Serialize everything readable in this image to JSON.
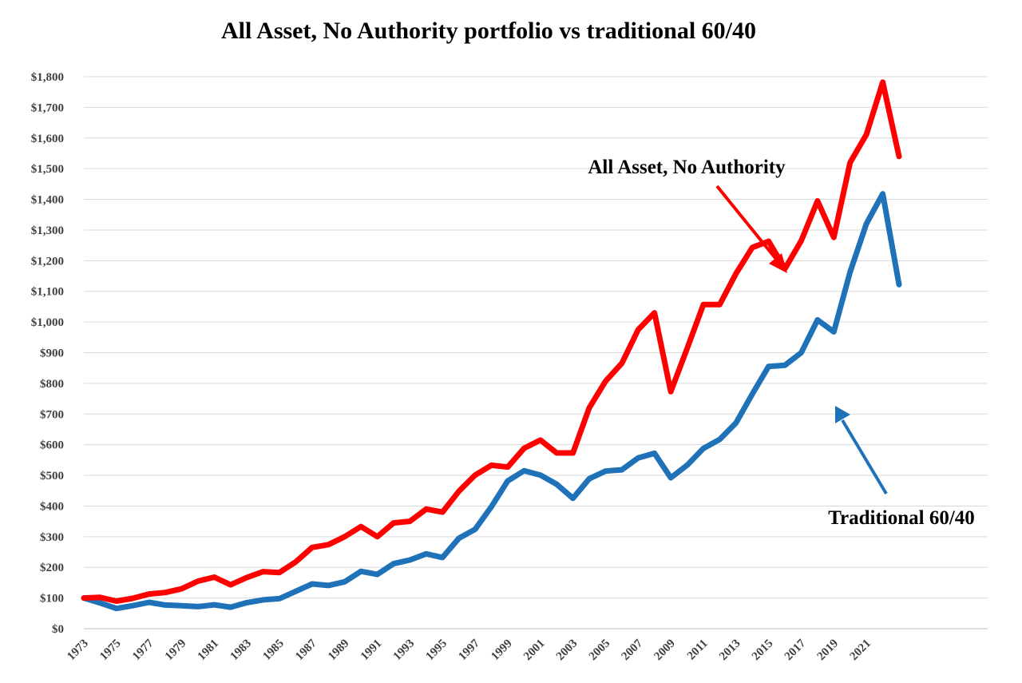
{
  "chart_data": {
    "type": "line",
    "title": "All Asset, No Authority portfolio vs traditional 60/40",
    "xlabel": "",
    "ylabel": "",
    "ylim": [
      0,
      1800
    ],
    "y_ticks": [
      "$0",
      "$100",
      "$200",
      "$300",
      "$400",
      "$500",
      "$600",
      "$700",
      "$800",
      "$900",
      "$1,000",
      "$1,100",
      "$1,200",
      "$1,300",
      "$1,400",
      "$1,500",
      "$1,600",
      "$1,700",
      "$1,800"
    ],
    "x_tick_labels": [
      "1973",
      "1975",
      "1977",
      "1979",
      "1981",
      "1983",
      "1985",
      "1987",
      "1989",
      "1991",
      "1993",
      "1995",
      "1997",
      "1999",
      "2001",
      "2003",
      "2005",
      "2007",
      "2009",
      "2011",
      "2013",
      "2015",
      "2017",
      "2019",
      "2021"
    ],
    "x": [
      1973,
      1974,
      1975,
      1976,
      1977,
      1978,
      1979,
      1980,
      1981,
      1982,
      1983,
      1984,
      1985,
      1986,
      1987,
      1988,
      1989,
      1990,
      1991,
      1992,
      1993,
      1994,
      1995,
      1996,
      1997,
      1998,
      1999,
      2000,
      2001,
      2002,
      2003,
      2004,
      2005,
      2006,
      2007,
      2008,
      2009,
      2010,
      2011,
      2012,
      2013,
      2014,
      2015,
      2016,
      2017,
      2018,
      2019,
      2020,
      2021,
      2022,
      2023
    ],
    "grid": true,
    "legend": "none",
    "series": [
      {
        "name": "All Asset, No Authority",
        "color": "#ff0000",
        "values": [
          100,
          102,
          90,
          99,
          113,
          118,
          130,
          155,
          168,
          143,
          167,
          186,
          183,
          218,
          265,
          274,
          300,
          333,
          300,
          345,
          350,
          390,
          380,
          448,
          501,
          533,
          527,
          588,
          615,
          573,
          573,
          720,
          807,
          866,
          975,
          1030,
          773,
          913,
          1057,
          1057,
          1158,
          1243,
          1263,
          1174,
          1265,
          1395,
          1276,
          1520,
          1612,
          1782,
          1540
        ]
      },
      {
        "name": "Traditional 60/40",
        "color": "#1f72b8",
        "values": [
          100,
          84,
          66,
          75,
          86,
          77,
          75,
          72,
          78,
          70,
          85,
          94,
          98,
          122,
          146,
          141,
          153,
          187,
          177,
          212,
          224,
          244,
          232,
          295,
          324,
          398,
          482,
          515,
          501,
          471,
          425,
          489,
          514,
          518,
          557,
          572,
          492,
          533,
          588,
          617,
          671,
          765,
          855,
          859,
          900,
          1007,
          968,
          1163,
          1321,
          1418,
          1122
        ]
      }
    ],
    "annotations": [
      {
        "text": "All Asset, No Authority",
        "color": "#ff0000",
        "points_to": "All Asset, No Authority"
      },
      {
        "text": "Traditional 60/40",
        "color": "#1f72b8",
        "points_to": "Traditional 60/40"
      }
    ]
  }
}
